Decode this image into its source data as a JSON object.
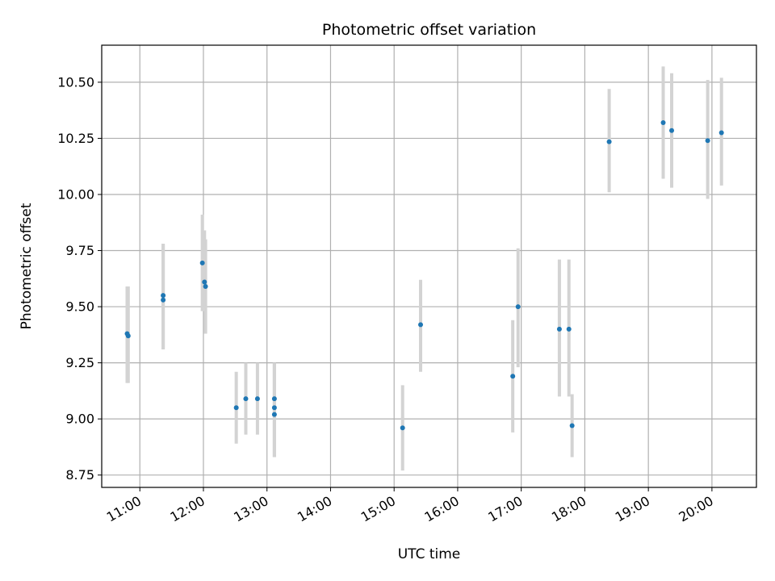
{
  "chart_data": {
    "type": "scatter",
    "title": "Photometric offset variation",
    "xlabel": "UTC time",
    "ylabel": "Photometric offset",
    "x_ticks": [
      "11:00",
      "12:00",
      "13:00",
      "14:00",
      "15:00",
      "16:00",
      "17:00",
      "18:00",
      "19:00",
      "20:00"
    ],
    "y_ticks": [
      "8.75",
      "9.00",
      "9.25",
      "9.50",
      "9.75",
      "10.00",
      "10.25",
      "10.50"
    ],
    "xlim": [
      "10:24",
      "20:42"
    ],
    "ylim": [
      8.695,
      10.665
    ],
    "grid": true,
    "series": [
      {
        "marker": "point",
        "error_bars": "y",
        "points": [
          {
            "x": "10:48",
            "y": 9.38,
            "yerr_low": 9.16,
            "yerr_high": 9.59
          },
          {
            "x": "10:49",
            "y": 9.37,
            "yerr_low": 9.16,
            "yerr_high": 9.59
          },
          {
            "x": "11:22",
            "y": 9.55,
            "yerr_low": 9.31,
            "yerr_high": 9.78
          },
          {
            "x": "11:22",
            "y": 9.53,
            "yerr_low": 9.31,
            "yerr_high": 9.78
          },
          {
            "x": "11:59",
            "y": 9.695,
            "yerr_low": 9.48,
            "yerr_high": 9.91
          },
          {
            "x": "12:01",
            "y": 9.61,
            "yerr_low": 9.5,
            "yerr_high": 9.84
          },
          {
            "x": "12:02",
            "y": 9.59,
            "yerr_low": 9.38,
            "yerr_high": 9.8
          },
          {
            "x": "12:31",
            "y": 9.05,
            "yerr_low": 8.89,
            "yerr_high": 9.21
          },
          {
            "x": "12:40",
            "y": 9.09,
            "yerr_low": 8.93,
            "yerr_high": 9.25
          },
          {
            "x": "12:51",
            "y": 9.09,
            "yerr_low": 8.93,
            "yerr_high": 9.25
          },
          {
            "x": "13:07",
            "y": 9.09,
            "yerr_low": 8.83,
            "yerr_high": 9.25
          },
          {
            "x": "13:07",
            "y": 9.05,
            "yerr_low": 8.83,
            "yerr_high": 9.25
          },
          {
            "x": "13:07",
            "y": 9.02,
            "yerr_low": 8.83,
            "yerr_high": 9.25
          },
          {
            "x": "15:08",
            "y": 8.96,
            "yerr_low": 8.77,
            "yerr_high": 9.15
          },
          {
            "x": "15:25",
            "y": 9.42,
            "yerr_low": 9.21,
            "yerr_high": 9.62
          },
          {
            "x": "16:52",
            "y": 9.19,
            "yerr_low": 8.94,
            "yerr_high": 9.44
          },
          {
            "x": "16:57",
            "y": 9.5,
            "yerr_low": 9.23,
            "yerr_high": 9.76
          },
          {
            "x": "17:36",
            "y": 9.4,
            "yerr_low": 9.1,
            "yerr_high": 9.71
          },
          {
            "x": "17:45",
            "y": 9.4,
            "yerr_low": 9.1,
            "yerr_high": 9.71
          },
          {
            "x": "17:48",
            "y": 8.97,
            "yerr_low": 8.83,
            "yerr_high": 9.11
          },
          {
            "x": "18:23",
            "y": 10.235,
            "yerr_low": 10.01,
            "yerr_high": 10.47
          },
          {
            "x": "19:14",
            "y": 10.32,
            "yerr_low": 10.07,
            "yerr_high": 10.57
          },
          {
            "x": "19:22",
            "y": 10.285,
            "yerr_low": 10.03,
            "yerr_high": 10.54
          },
          {
            "x": "19:56",
            "y": 10.24,
            "yerr_low": 9.98,
            "yerr_high": 10.51
          },
          {
            "x": "20:09",
            "y": 10.275,
            "yerr_low": 10.04,
            "yerr_high": 10.52
          }
        ]
      }
    ],
    "colors": {
      "marker": "#1f77b4",
      "error_bar": "#d3d3d3",
      "grid": "#b0b0b0",
      "axes": "#000000"
    }
  }
}
